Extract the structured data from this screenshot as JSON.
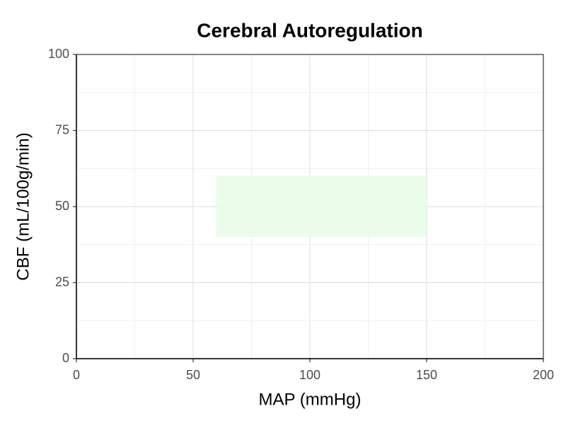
{
  "chart_data": {
    "type": "region",
    "title": "Cerebral Autoregulation",
    "x_label": "MAP (mmHg)",
    "y_label": "CBF (mL/100g/min)",
    "xlim": [
      0,
      200
    ],
    "xticks": [
      0,
      50,
      100,
      150,
      200
    ],
    "ylim": [
      0,
      100
    ],
    "yticks": [
      0,
      25,
      50,
      75,
      100
    ],
    "grid": true,
    "minor_grid": true,
    "regions": [
      {
        "x": [
          60,
          150
        ],
        "y": [
          40,
          60
        ],
        "color": "#e8fce8"
      }
    ]
  }
}
